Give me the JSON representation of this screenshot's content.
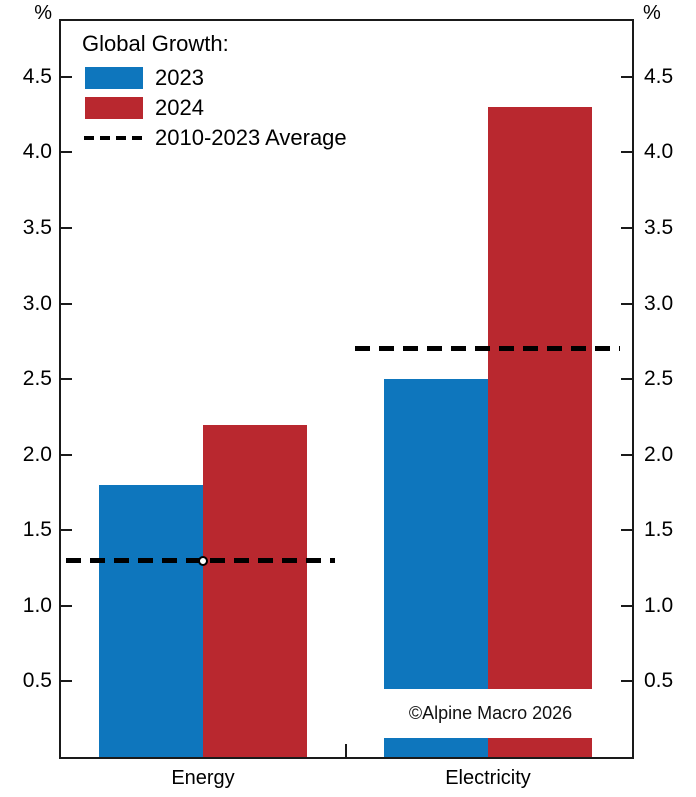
{
  "colors": {
    "axis": "#1a1a1a",
    "average_line": "#000000",
    "series_2023_blue": "#0E76BD",
    "series_2024_red": "#B9282F"
  },
  "chart_data": {
    "type": "bar",
    "legend_title": "Global Growth:",
    "unit_label": "%",
    "categories": [
      "Energy",
      "Electricity"
    ],
    "series": [
      {
        "name": "2023",
        "color": "#0E76BD",
        "values": [
          1.8,
          2.5
        ]
      },
      {
        "name": "2024",
        "color": "#B9282F",
        "values": [
          2.2,
          4.3
        ]
      }
    ],
    "average_line": {
      "label": "2010-2023 Average",
      "color": "#000000",
      "values": [
        1.3,
        2.7
      ]
    },
    "ylim": [
      0,
      4.87
    ],
    "yticks": [
      0.5,
      1.0,
      1.5,
      2.0,
      2.5,
      3.0,
      3.5,
      4.0,
      4.5
    ],
    "ytick_labels": [
      "0.5",
      "1.0",
      "1.5",
      "2.0",
      "2.5",
      "3.0",
      "3.5",
      "4.0",
      "4.5"
    ],
    "grid": false,
    "legend_position": "top-left"
  },
  "watermark": {
    "text": "©Alpine Macro 2026"
  }
}
